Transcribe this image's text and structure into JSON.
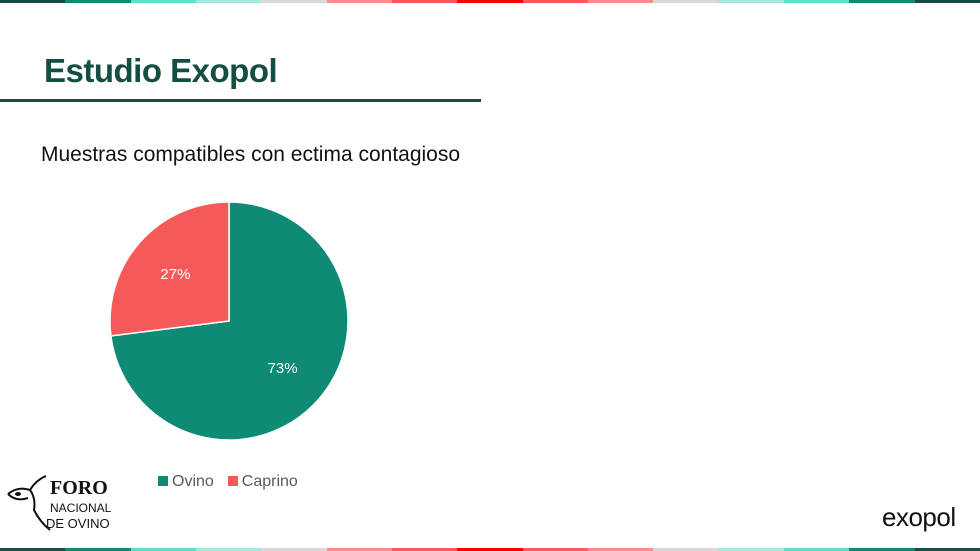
{
  "header": {
    "title": "Estudio Exopol"
  },
  "stripe_colors": [
    "#134d43",
    "#14876f",
    "#5ee0c6",
    "#9eeadc",
    "#d9d9d9",
    "#ff8c8c",
    "#ff5a5a",
    "#ff0000",
    "#ff5a5a",
    "#ff8c8c",
    "#d9d9d9",
    "#9eeadc",
    "#5ee0c6",
    "#14876f",
    "#134d43"
  ],
  "chart_data": {
    "type": "pie",
    "title": "Muestras compatibles con ectima contagioso",
    "categories": [
      "Ovino",
      "Caprino"
    ],
    "values": [
      73,
      27
    ],
    "labels": [
      "73%",
      "27%"
    ],
    "colors": [
      "#0e8a75",
      "#f55a5a"
    ],
    "legend": "bottom"
  },
  "logos": {
    "foro": "FORO NACIONAL DE OVINO",
    "exopol": "exopol"
  }
}
